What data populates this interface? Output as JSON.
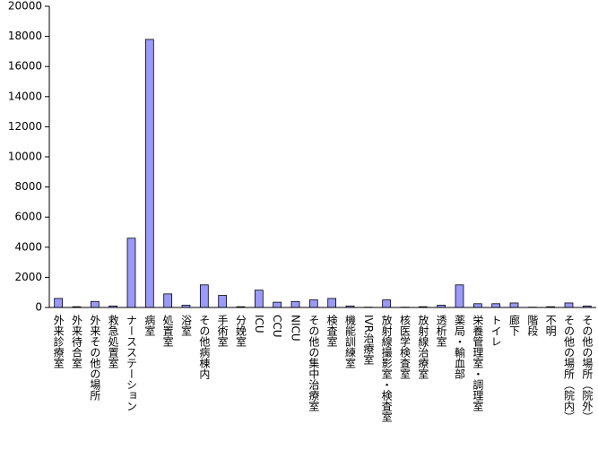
{
  "chart_data": {
    "type": "bar",
    "categories": [
      "外来診療室",
      "外来待合室",
      "外来その他の場所",
      "救急処置室",
      "ナースステーション",
      "病室",
      "処置室",
      "浴室",
      "その他病棟内",
      "手術室",
      "分娩室",
      "ICU",
      "CCU",
      "NICU",
      "その他の集中治療室",
      "検査室",
      "機能訓練室",
      "IVR治療室",
      "放射線撮影室・検査室",
      "核医学検査室",
      "放射線治療室",
      "透析室",
      "薬局・輸血部",
      "栄養管理室・調理室",
      "トイレ",
      "廊下",
      "階段",
      "不明",
      "その他の場所（院内）",
      "その他の場所（院外）"
    ],
    "values": [
      600,
      50,
      400,
      100,
      4600,
      17800,
      900,
      150,
      1500,
      800,
      50,
      1150,
      350,
      400,
      500,
      600,
      100,
      20,
      500,
      20,
      50,
      150,
      1500,
      250,
      250,
      300,
      20,
      50,
      300,
      100
    ],
    "color": "#9999ff",
    "ylim": [
      0,
      20000
    ],
    "yticks": [
      0,
      2000,
      4000,
      6000,
      8000,
      10000,
      12000,
      14000,
      16000,
      18000,
      20000
    ]
  }
}
